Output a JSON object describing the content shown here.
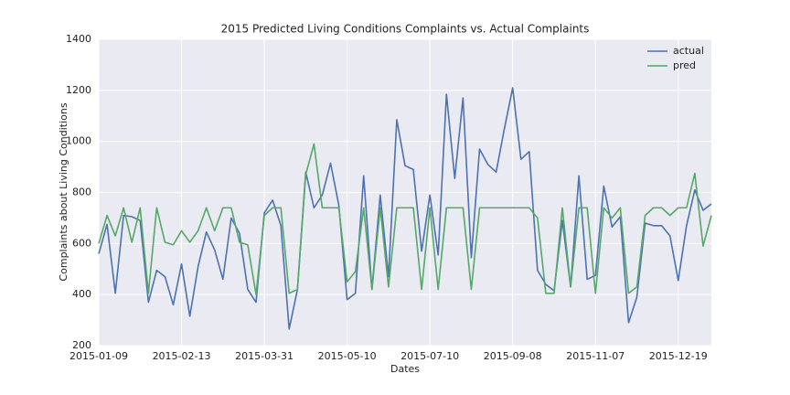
{
  "chart_data": {
    "type": "line",
    "title": "2015 Predicted Living Conditions Complaints vs. Actual Complaints",
    "x_label": "Dates",
    "y_label": "Complaints about Living Conditions",
    "categories": [
      "2015-01-09",
      null,
      null,
      null,
      null,
      null,
      null,
      null,
      null,
      null,
      "2015-02-13",
      null,
      null,
      null,
      null,
      null,
      null,
      null,
      null,
      null,
      "2015-03-31",
      null,
      null,
      null,
      null,
      null,
      null,
      null,
      null,
      null,
      "2015-05-10",
      null,
      null,
      null,
      null,
      null,
      null,
      null,
      null,
      null,
      "2015-07-10",
      null,
      null,
      null,
      null,
      null,
      null,
      null,
      null,
      null,
      "2015-09-08",
      null,
      null,
      null,
      null,
      null,
      null,
      null,
      null,
      null,
      "2015-11-07",
      null,
      null,
      null,
      null,
      null,
      null,
      null,
      null,
      null,
      "2015-12-19",
      null,
      null,
      null,
      null
    ],
    "series": [
      {
        "name": "actual",
        "color": "#4c72b0",
        "values": [
          560,
          675,
          405,
          710,
          705,
          690,
          370,
          495,
          470,
          360,
          520,
          315,
          510,
          645,
          575,
          460,
          700,
          640,
          420,
          370,
          720,
          770,
          670,
          265,
          420,
          880,
          740,
          790,
          915,
          750,
          380,
          405,
          865,
          420,
          790,
          470,
          1085,
          905,
          890,
          570,
          790,
          555,
          1185,
          855,
          1170,
          545,
          970,
          910,
          880,
          1050,
          1210,
          930,
          960,
          495,
          440,
          415,
          690,
          430,
          865,
          460,
          475,
          825,
          665,
          705,
          290,
          390,
          680,
          670,
          670,
          630,
          455,
          670,
          810,
          730,
          755
        ]
      },
      {
        "name": "pred",
        "color": "#55a868",
        "values": [
          600,
          710,
          630,
          740,
          605,
          740,
          405,
          740,
          605,
          595,
          650,
          605,
          650,
          740,
          650,
          740,
          740,
          605,
          595,
          400,
          710,
          740,
          740,
          405,
          420,
          870,
          990,
          740,
          740,
          740,
          450,
          490,
          740,
          420,
          740,
          430,
          740,
          740,
          740,
          420,
          740,
          420,
          740,
          740,
          740,
          420,
          740,
          740,
          740,
          740,
          740,
          740,
          740,
          700,
          405,
          405,
          740,
          430,
          740,
          740,
          405,
          740,
          700,
          740,
          405,
          430,
          710,
          740,
          740,
          710,
          740,
          740,
          875,
          590,
          710
        ]
      }
    ],
    "ylim": [
      200,
      1400
    ],
    "yticks": [
      200,
      400,
      600,
      800,
      1000,
      1200,
      1400
    ],
    "grid": true,
    "legend": "upper right",
    "background": "#eaeaf2"
  }
}
